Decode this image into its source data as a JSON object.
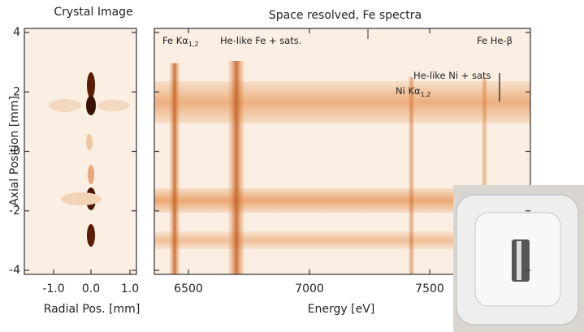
{
  "left_panel": {
    "title": "Crystal Image",
    "ylabel": "Axial Position [mm]",
    "xlabel": "Radial Pos. [mm]",
    "yticks": [
      "4",
      "2",
      "0",
      "-2",
      "-4"
    ],
    "xticks": [
      "-1.0",
      "0.0",
      "1.0"
    ]
  },
  "right_panel": {
    "title": "Space resolved, Fe spectra",
    "xlabel": "Energy [eV]",
    "xticks": [
      "6500",
      "7000",
      "7500"
    ],
    "annotations": [
      {
        "text": "Fe Kα",
        "sub": "1,2"
      },
      {
        "text": "He-like Fe + sats."
      },
      {
        "text": "He-like Ni + sats"
      },
      {
        "text": "Ni Kα",
        "sub": "1,2"
      },
      {
        "text": "Fe He-β"
      }
    ]
  }
}
